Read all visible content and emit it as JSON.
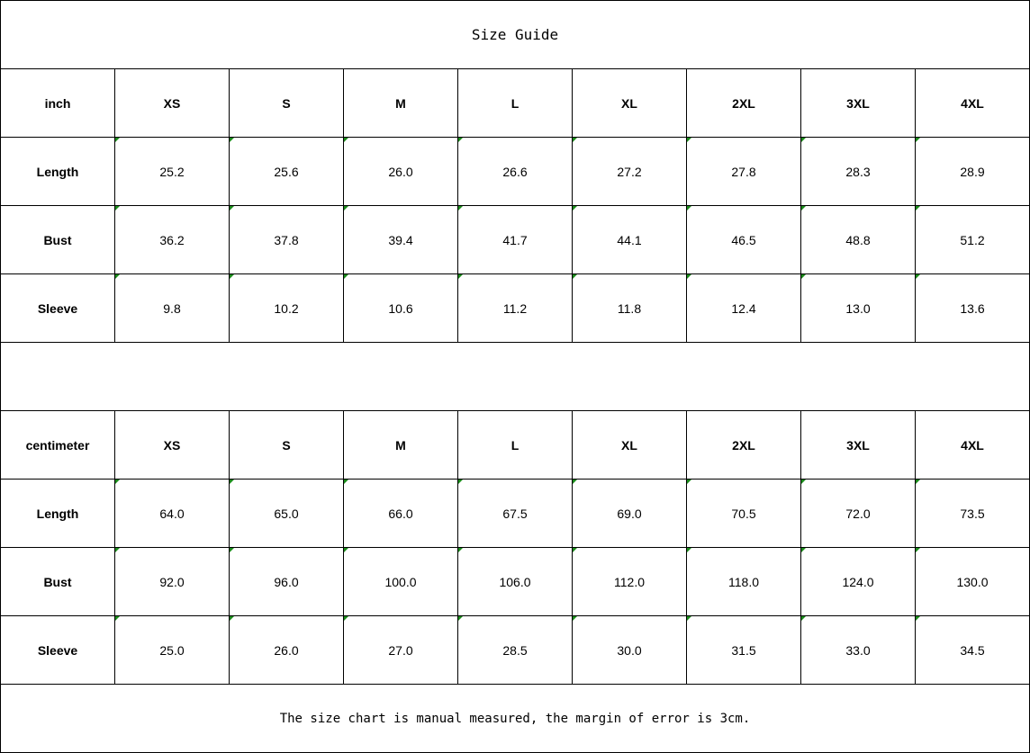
{
  "title": "Size Guide",
  "sizes": [
    "XS",
    "S",
    "M",
    "L",
    "XL",
    "2XL",
    "3XL",
    "4XL"
  ],
  "tables": [
    {
      "unit": "inch",
      "rows": [
        {
          "label": "Length",
          "values": [
            "25.2",
            "25.6",
            "26.0",
            "26.6",
            "27.2",
            "27.8",
            "28.3",
            "28.9"
          ]
        },
        {
          "label": "Bust",
          "values": [
            "36.2",
            "37.8",
            "39.4",
            "41.7",
            "44.1",
            "46.5",
            "48.8",
            "51.2"
          ]
        },
        {
          "label": "Sleeve",
          "values": [
            "9.8",
            "10.2",
            "10.6",
            "11.2",
            "11.8",
            "12.4",
            "13.0",
            "13.6"
          ]
        }
      ]
    },
    {
      "unit": "centimeter",
      "rows": [
        {
          "label": "Length",
          "values": [
            "64.0",
            "65.0",
            "66.0",
            "67.5",
            "69.0",
            "70.5",
            "72.0",
            "73.5"
          ]
        },
        {
          "label": "Bust",
          "values": [
            "92.0",
            "96.0",
            "100.0",
            "106.0",
            "112.0",
            "118.0",
            "124.0",
            "130.0"
          ]
        },
        {
          "label": "Sleeve",
          "values": [
            "25.0",
            "26.0",
            "27.0",
            "28.5",
            "30.0",
            "31.5",
            "33.0",
            "34.5"
          ]
        }
      ]
    }
  ],
  "note": "The size chart is manual measured, the margin of error is 3cm."
}
